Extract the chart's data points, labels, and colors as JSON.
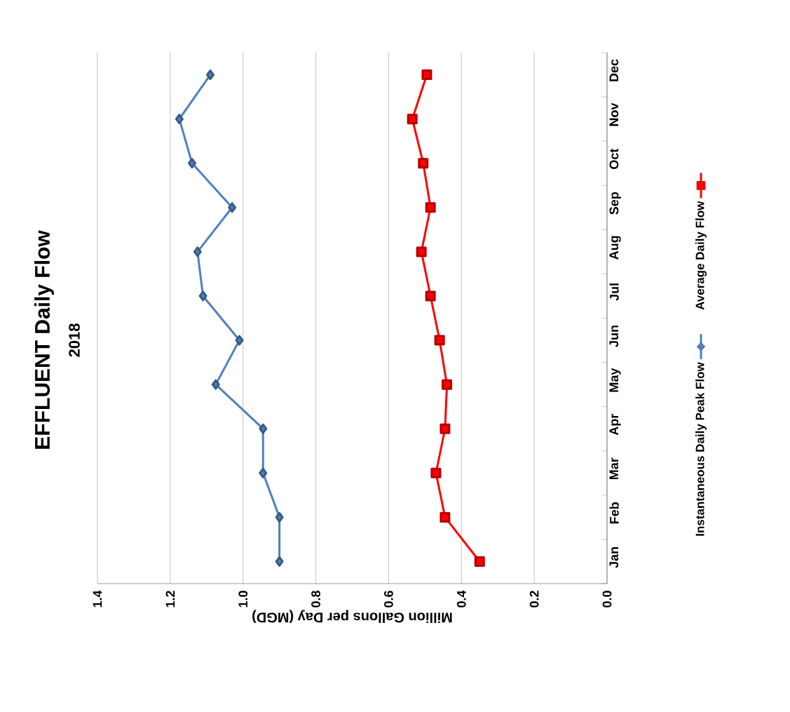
{
  "chart_data": {
    "type": "line",
    "orientation": "horizontal",
    "title": "EFFLUENT Daily Flow",
    "subtitle": "2018",
    "xlabel": "Million Gallons per Day (MGD)",
    "categories": [
      "Dec",
      "Nov",
      "Oct",
      "Sep",
      "Aug",
      "Jul",
      "Jun",
      "May",
      "Apr",
      "Mar",
      "Feb",
      "Jan"
    ],
    "series": [
      {
        "name": "Instantaneous Daily Peak Flow",
        "color": "#4f81bd",
        "marker": "diamond",
        "values": [
          1.09,
          1.175,
          1.14,
          1.03,
          1.125,
          1.11,
          1.01,
          1.075,
          0.945,
          0.945,
          0.9,
          0.9
        ]
      },
      {
        "name": "Average Daily Flow",
        "color": "#ff0000",
        "marker": "square",
        "values": [
          0.495,
          0.535,
          0.505,
          0.485,
          0.51,
          0.485,
          0.46,
          0.44,
          0.445,
          0.47,
          0.445,
          0.35
        ]
      }
    ],
    "xlim": [
      1.4,
      0
    ],
    "xticks": [
      {
        "value": 1.4,
        "label": "1.4"
      },
      {
        "value": 1.2,
        "label": "1.2"
      },
      {
        "value": 1.0,
        "label": "1.0"
      },
      {
        "value": 0.8,
        "label": "0.8"
      },
      {
        "value": 0.6,
        "label": "0.6"
      },
      {
        "value": 0.4,
        "label": "0.4"
      },
      {
        "value": 0.2,
        "label": "0.2"
      },
      {
        "value": 0,
        "label": "0.0"
      }
    ],
    "grid": "x",
    "legend": "right",
    "line_style": "solid"
  }
}
